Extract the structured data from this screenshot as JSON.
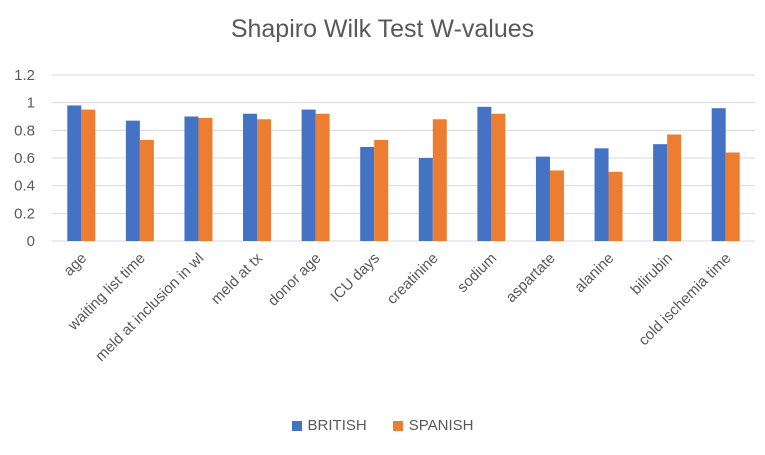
{
  "chart_data": {
    "type": "bar",
    "title": "Shapiro Wilk Test W-values",
    "xlabel": "",
    "ylabel": "",
    "ylim": [
      0,
      1.2
    ],
    "yticks": [
      "0",
      "0.2",
      "0.4",
      "0.6",
      "0.8",
      "1",
      "1.2"
    ],
    "grid": true,
    "legend_position": "bottom",
    "categories": [
      "age",
      "waiting list time",
      "meld at inclusion in wl",
      "meld at tx",
      "donor age",
      "ICU days",
      "creatinine",
      "sodium",
      "aspartate",
      "alanine",
      "bilirubin",
      "cold ischemia time"
    ],
    "series": [
      {
        "name": "BRITISH",
        "color": "#4472C4",
        "values": [
          0.98,
          0.87,
          0.9,
          0.92,
          0.95,
          0.68,
          0.6,
          0.97,
          0.61,
          0.67,
          0.7,
          0.96
        ]
      },
      {
        "name": "SPANISH",
        "color": "#ED7D31",
        "values": [
          0.95,
          0.73,
          0.89,
          0.88,
          0.92,
          0.73,
          0.88,
          0.92,
          0.51,
          0.5,
          0.77,
          0.64
        ]
      }
    ]
  }
}
